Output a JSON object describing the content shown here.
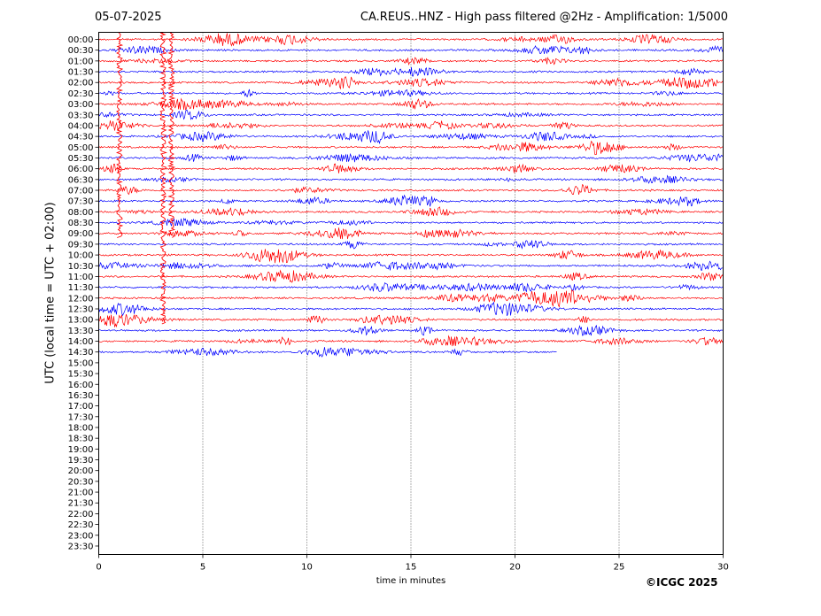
{
  "header": {
    "date": "05-07-2025",
    "title": "CA.REUS..HNZ - High pass filtered @2Hz - Amplification: 1/5000"
  },
  "footer": {
    "copyright": "©ICGC 2025"
  },
  "colors": {
    "even_trace": "#ff0000",
    "odd_trace": "#0000ff",
    "grid": "#000000"
  },
  "chart_data": {
    "type": "line",
    "title": "CA.REUS..HNZ - High pass filtered @2Hz - Amplification: 1/5000",
    "xlabel": "time in minutes",
    "ylabel": "UTC (local time = UTC + 02:00)",
    "xlim": [
      0,
      30
    ],
    "x_ticks": [
      0,
      5,
      10,
      15,
      20,
      25,
      30
    ],
    "grid": "vertical dotted at x ticks",
    "row_labels": [
      "00:00",
      "00:30",
      "01:00",
      "01:30",
      "02:00",
      "02:30",
      "03:00",
      "03:30",
      "04:00",
      "04:30",
      "05:00",
      "05:30",
      "06:00",
      "06:30",
      "07:00",
      "07:30",
      "08:00",
      "08:30",
      "09:00",
      "09:30",
      "10:00",
      "10:30",
      "11:00",
      "11:30",
      "12:00",
      "12:30",
      "13:00",
      "13:30",
      "14:00",
      "14:30",
      "15:00",
      "15:30",
      "16:00",
      "16:30",
      "17:00",
      "17:30",
      "18:00",
      "18:30",
      "19:00",
      "19:30",
      "20:00",
      "20:30",
      "21:00",
      "21:30",
      "22:00",
      "22:30",
      "23:00",
      "23:30"
    ],
    "traces": [
      {
        "row": "00:00",
        "start_min": 0,
        "end_min": 30
      },
      {
        "row": "00:30",
        "start_min": 0,
        "end_min": 30
      },
      {
        "row": "01:00",
        "start_min": 0,
        "end_min": 30
      },
      {
        "row": "01:30",
        "start_min": 0,
        "end_min": 30
      },
      {
        "row": "02:00",
        "start_min": 0,
        "end_min": 30
      },
      {
        "row": "02:30",
        "start_min": 0,
        "end_min": 30
      },
      {
        "row": "03:00",
        "start_min": 0,
        "end_min": 30
      },
      {
        "row": "03:30",
        "start_min": 0,
        "end_min": 30
      },
      {
        "row": "04:00",
        "start_min": 0,
        "end_min": 30
      },
      {
        "row": "04:30",
        "start_min": 0,
        "end_min": 30
      },
      {
        "row": "05:00",
        "start_min": 0,
        "end_min": 30
      },
      {
        "row": "05:30",
        "start_min": 0,
        "end_min": 30
      },
      {
        "row": "06:00",
        "start_min": 0,
        "end_min": 30
      },
      {
        "row": "06:30",
        "start_min": 0,
        "end_min": 30
      },
      {
        "row": "07:00",
        "start_min": 0,
        "end_min": 30
      },
      {
        "row": "07:30",
        "start_min": 0,
        "end_min": 30
      },
      {
        "row": "08:00",
        "start_min": 0,
        "end_min": 30
      },
      {
        "row": "08:30",
        "start_min": 0,
        "end_min": 30
      },
      {
        "row": "09:00",
        "start_min": 0,
        "end_min": 30
      },
      {
        "row": "09:30",
        "start_min": 0,
        "end_min": 30
      },
      {
        "row": "10:00",
        "start_min": 0,
        "end_min": 30
      },
      {
        "row": "10:30",
        "start_min": 0,
        "end_min": 30
      },
      {
        "row": "11:00",
        "start_min": 0,
        "end_min": 30
      },
      {
        "row": "11:30",
        "start_min": 0,
        "end_min": 30
      },
      {
        "row": "12:00",
        "start_min": 0,
        "end_min": 30
      },
      {
        "row": "12:30",
        "start_min": 0,
        "end_min": 30
      },
      {
        "row": "13:00",
        "start_min": 0,
        "end_min": 30
      },
      {
        "row": "13:30",
        "start_min": 0,
        "end_min": 30
      },
      {
        "row": "14:00",
        "start_min": 0,
        "end_min": 30
      },
      {
        "row": "14:30",
        "start_min": 0,
        "end_min": 22
      }
    ],
    "events": [
      {
        "x_min": 1.0,
        "from_row": "00:00",
        "to_row": "09:00"
      },
      {
        "x_min": 3.1,
        "from_row": "00:00",
        "to_row": "13:00"
      },
      {
        "x_min": 3.5,
        "from_row": "00:00",
        "to_row": "09:00"
      }
    ]
  }
}
